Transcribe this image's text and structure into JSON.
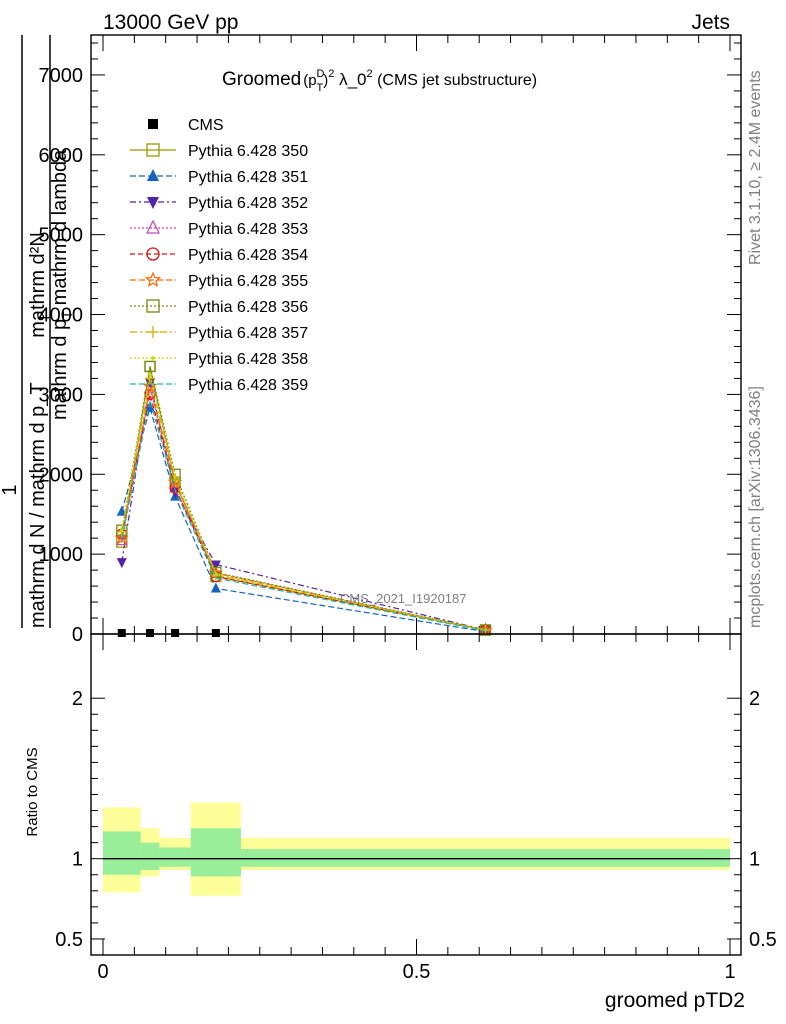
{
  "header": {
    "left": "13000 GeV pp",
    "right": "Jets"
  },
  "side_labels": {
    "rivet": "Rivet 3.1.10, ≥ 2.4M events",
    "mcplots": "mcplots.cern.ch [arXiv:1306.3436]"
  },
  "watermark": "CMS_2021_I1920187",
  "chart_data": {
    "type": "line",
    "title": {
      "main": "Groomed",
      "sym_p": "(p",
      "sup_d": "D",
      "sub_t": "T",
      "close": ")",
      "sup_2": "2",
      "mid": " λ_0",
      "sup_2b": "2",
      "tail": " (CMS jet substructure)"
    },
    "ylabel": {
      "numerator": "mathrm d²N",
      "denominator": "mathrm d p_T mathrm d lambda",
      "prefix_num": "1",
      "prefix_den": "mathrm d N / mathrm d p_T",
      "ylabel_top": "mathrm d²N",
      "ylabel_bottom": "mathrm d p",
      "sub_T": "T",
      "tail": " mathrm d lambda"
    },
    "xlabel": "groomed pTD2",
    "xlim": [
      0,
      1
    ],
    "ylim": [
      0,
      7500
    ],
    "x_ticks": [
      "0",
      "0.5",
      "1"
    ],
    "y_ticks": [
      "0",
      "1000",
      "2000",
      "3000",
      "4000",
      "5000",
      "6000",
      "7000"
    ],
    "x": [
      0.03,
      0.075,
      0.115,
      0.18,
      0.61
    ],
    "data": {
      "name": "CMS",
      "values": [
        0,
        0,
        0,
        0,
        0
      ]
    },
    "series": [
      {
        "name": "Pythia 6.428 350",
        "color": "#999900",
        "marker": "square-open",
        "dash": "",
        "values": [
          1150,
          3350,
          1900,
          720,
          50
        ]
      },
      {
        "name": "Pythia 6.428 351",
        "color": "#1565c0",
        "marker": "triangle-up",
        "dash": "6,3",
        "values": [
          1530,
          2830,
          1720,
          570,
          30
        ]
      },
      {
        "name": "Pythia 6.428 352",
        "color": "#5522aa",
        "marker": "triangle-down",
        "dash": "6,3,2,3",
        "values": [
          900,
          3150,
          1780,
          870,
          50
        ]
      },
      {
        "name": "Pythia 6.428 353",
        "color": "#cc44aa",
        "marker": "triangle-open",
        "dash": "2,2",
        "values": [
          1170,
          3080,
          1830,
          760,
          50
        ]
      },
      {
        "name": "Pythia 6.428 354",
        "color": "#dd1111",
        "marker": "circle-open",
        "dash": "5,3",
        "values": [
          1250,
          3000,
          1830,
          720,
          50
        ]
      },
      {
        "name": "Pythia 6.428 355",
        "color": "#ff6600",
        "marker": "star-open",
        "dash": "6,3",
        "values": [
          1200,
          3100,
          1900,
          760,
          50
        ]
      },
      {
        "name": "Pythia 6.428 356",
        "color": "#778811",
        "marker": "square-open",
        "dash": "2,2",
        "values": [
          1300,
          3350,
          2000,
          770,
          50
        ]
      },
      {
        "name": "Pythia 6.428 357",
        "color": "#ddaa00",
        "marker": "cross",
        "dash": "7,3,2,3",
        "values": [
          1280,
          3200,
          1930,
          740,
          50
        ]
      },
      {
        "name": "Pythia 6.428 358",
        "color": "#bbdd00",
        "marker": "dot",
        "dash": "2,2",
        "values": [
          1300,
          3250,
          1970,
          750,
          50
        ]
      },
      {
        "name": "Pythia 6.428 359",
        "color": "#22bbaa",
        "marker": "none",
        "dash": "6,3",
        "values": [
          1180,
          2930,
          1800,
          700,
          40
        ]
      }
    ],
    "ratio": {
      "ylabel": "Ratio to CMS",
      "ylim": [
        0.4,
        2.4
      ],
      "y_ticks": [
        "0.5",
        "1",
        "2"
      ],
      "bins": [
        {
          "lo": 0.0,
          "hi": 0.06,
          "green": [
            0.9,
            1.17
          ],
          "yellow": [
            0.79,
            1.32
          ]
        },
        {
          "lo": 0.06,
          "hi": 0.09,
          "green": [
            0.93,
            1.1
          ],
          "yellow": [
            0.89,
            1.19
          ]
        },
        {
          "lo": 0.09,
          "hi": 0.14,
          "green": [
            0.95,
            1.07
          ],
          "yellow": [
            0.93,
            1.13
          ]
        },
        {
          "lo": 0.14,
          "hi": 0.22,
          "green": [
            0.89,
            1.19
          ],
          "yellow": [
            0.77,
            1.35
          ]
        },
        {
          "lo": 0.22,
          "hi": 1.0,
          "green": [
            0.95,
            1.06
          ],
          "yellow": [
            0.93,
            1.13
          ]
        }
      ]
    }
  }
}
